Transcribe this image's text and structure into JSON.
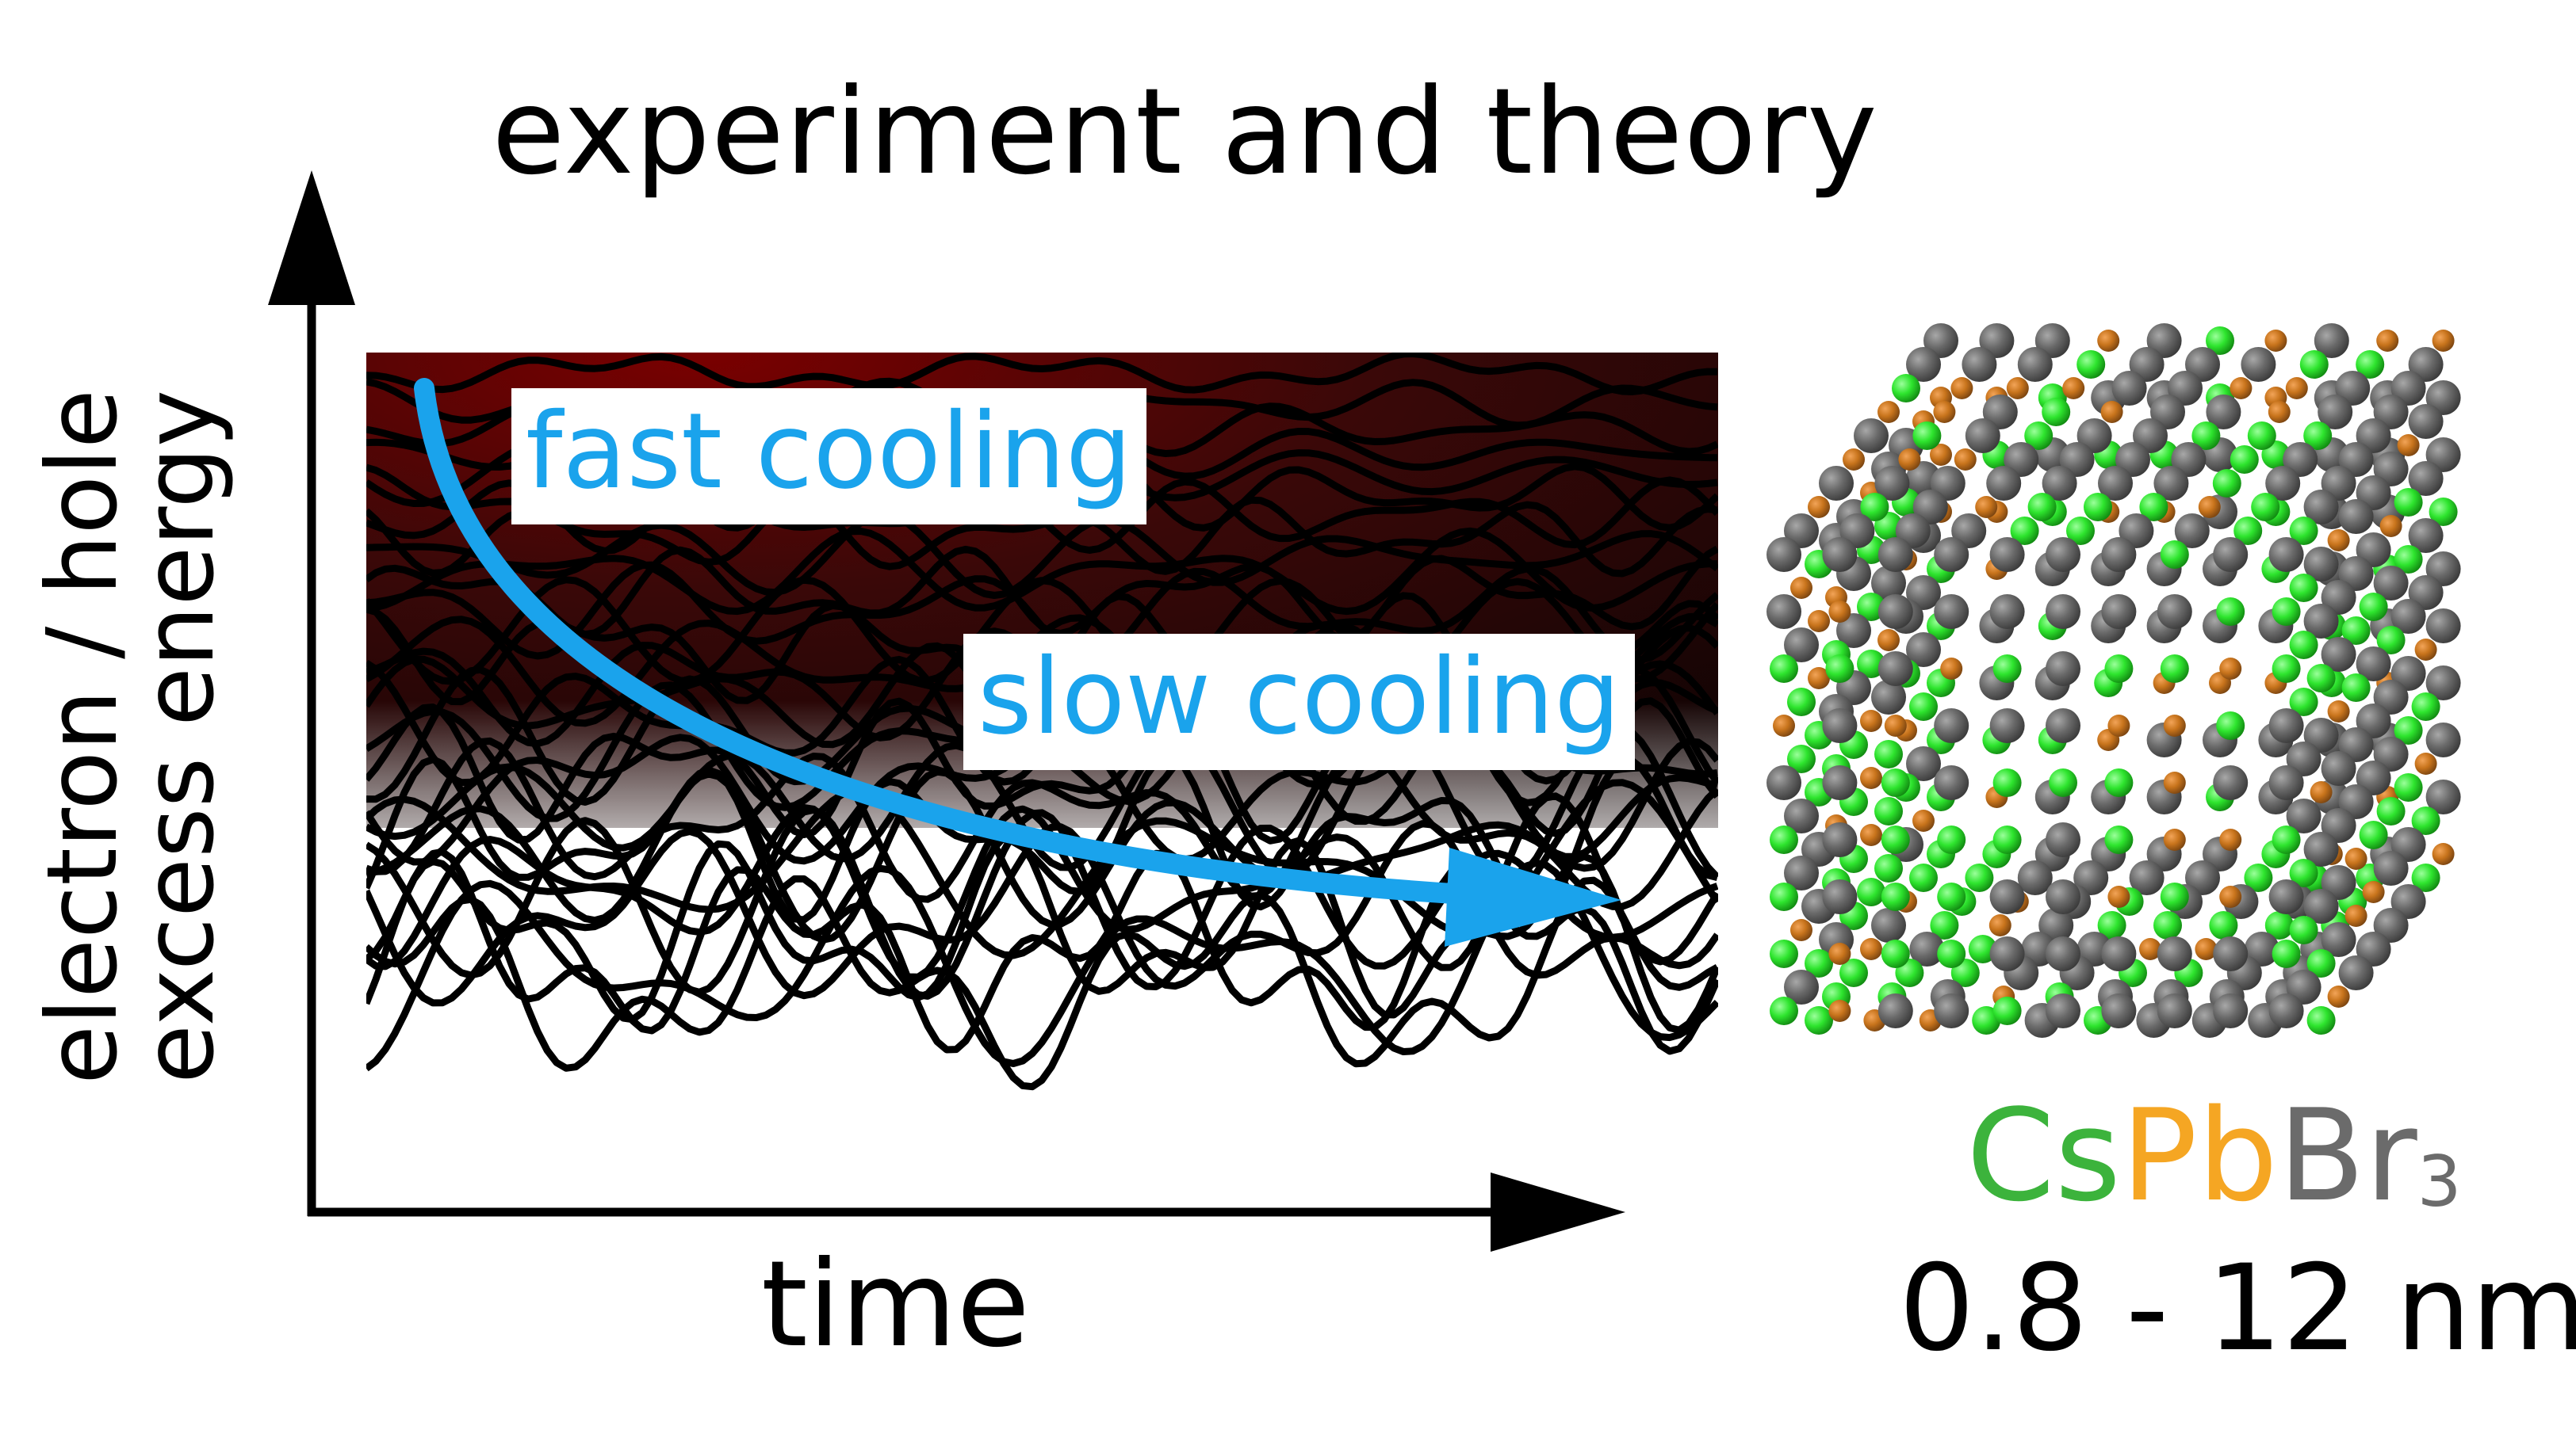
{
  "title": "experiment and theory",
  "y_axis_label": [
    "electron / hole",
    "excess energy"
  ],
  "x_axis_label": "time",
  "annotations": {
    "fast": "fast cooling",
    "slow": "slow cooling"
  },
  "material": {
    "cs": "Cs",
    "pb": "Pb",
    "br": "Br",
    "sub": "3"
  },
  "size_range": "0.8 - 12 nm",
  "colors": {
    "arrow": "#1aa3ec",
    "background_top": "#7a0000",
    "cs": "#3cb33c",
    "pb": "#f5a623",
    "br": "#6b6b6b",
    "atom_green": "#2ee52e",
    "atom_grey": "#6a6a6a",
    "atom_orange": "#c8741c"
  }
}
